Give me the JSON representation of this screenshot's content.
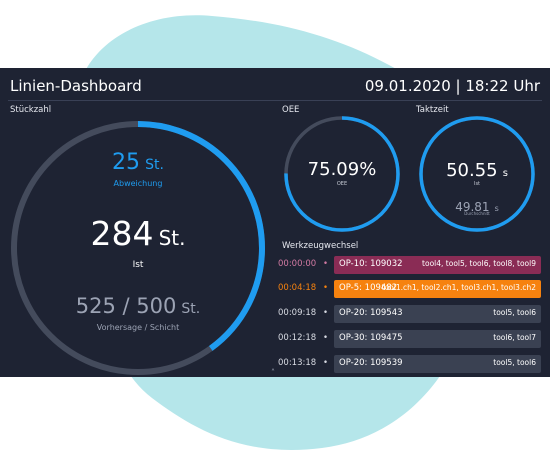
{
  "header": {
    "title": "Linien-Dashboard",
    "datetime": "09.01.2020 | 18:22 Uhr"
  },
  "colors": {
    "accent": "#1f9cf0",
    "track": "#444b5c",
    "warning": "#8a2c55",
    "alert": "#f6820f",
    "background": "#1e2333"
  },
  "stueckzahl": {
    "label": "Stückzahl",
    "progress": 0.4,
    "abweichung_value": "25",
    "abweichung_unit": "St.",
    "abweichung_label": "Abweichung",
    "ist_value": "284",
    "ist_unit": "St.",
    "ist_label": "Ist",
    "vorhersage_value": "525 / 500",
    "vorhersage_unit": "St.",
    "vorhersage_label": "Vorhersage / Schicht"
  },
  "oee": {
    "label": "OEE",
    "value": "75.09%",
    "sublabel": "OEE",
    "progress": 0.7509
  },
  "taktzeit": {
    "label": "Taktzeit",
    "ist_value": "50.55",
    "ist_unit": "s",
    "ist_label": "Ist",
    "soll_value": "49.81",
    "soll_unit": "s",
    "soll_label": "Durchschnitt",
    "progress": 1.0
  },
  "werkzeugwechsel": {
    "label": "Werkzeugwechsel",
    "rows": [
      {
        "time": "00:00:00",
        "op": "OP-10: 109032",
        "tools": "tool4, tool5, tool6, tool8, tool9",
        "status": "warn"
      },
      {
        "time": "00:04:18",
        "op": "OP-5: 109482",
        "tools": "tool1.ch1, tool2.ch1, tool3.ch1, tool3.ch2",
        "status": "alert"
      },
      {
        "time": "00:09:18",
        "op": "OP-20: 109543",
        "tools": "tool5, tool6",
        "status": "normal"
      },
      {
        "time": "00:12:18",
        "op": "OP-30: 109475",
        "tools": "tool6, tool7",
        "status": "normal"
      },
      {
        "time": "00:13:18",
        "op": "OP-20: 109539",
        "tools": "tool5, tool6",
        "status": "normal"
      }
    ]
  },
  "footer": {
    "caret_icon": "chevron-up-icon"
  }
}
